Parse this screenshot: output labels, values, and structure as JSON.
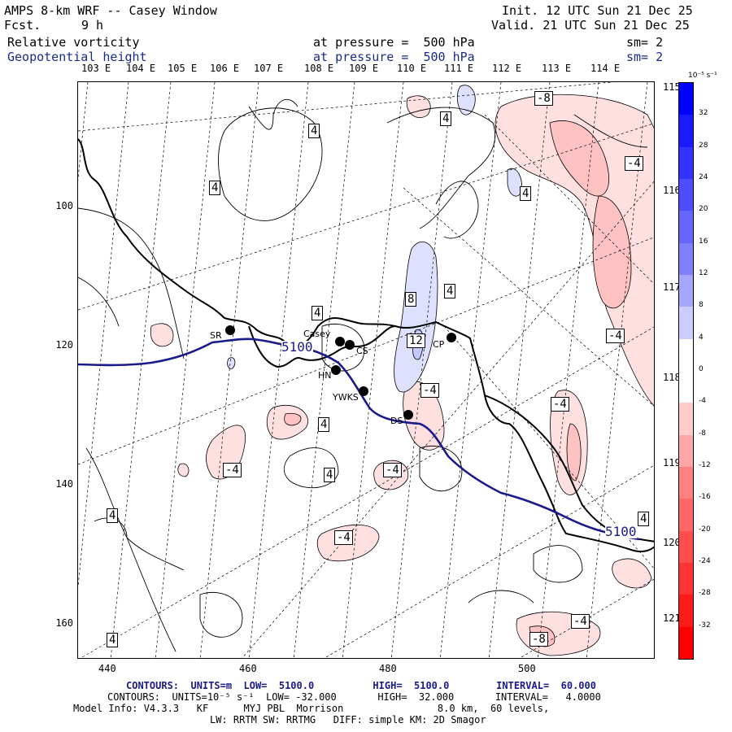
{
  "header": {
    "title": "AMPS 8-km WRF -- Casey Window",
    "fcst_label": "Fcst.",
    "fcst_value": "9 h",
    "init": "Init. 12 UTC Sun 21 Dec 25",
    "valid": "Valid. 21 UTC Sun 21 Dec 25",
    "field1": "Relative vorticity",
    "field1_pressure": "at pressure =  500 hPa",
    "field1_sm": "sm= 2",
    "field2": "Geopotential height",
    "field2_pressure": "at pressure =  500 hPa",
    "field2_sm": "sm= 2"
  },
  "longitudes": [
    "103 E",
    "104 E",
    "105 E",
    "106 E",
    "107 E",
    "108 E",
    "109 E",
    "110 E",
    "111 E",
    "112 E",
    "113 E",
    "114 E"
  ],
  "right_lon_labels": [
    "115 E",
    "116 E",
    "117 E",
    "118 E",
    "119 E",
    "120 E",
    "121 E"
  ],
  "y_ticks": [
    "100",
    "120",
    "140",
    "160"
  ],
  "x_ticks": [
    "440",
    "460",
    "480",
    "500"
  ],
  "colorbar": {
    "unit": "10⁻⁵ s⁻¹",
    "labels": [
      "32",
      "28",
      "24",
      "20",
      "16",
      "12",
      "8",
      "4",
      "0",
      "-4",
      "-8",
      "-12",
      "-16",
      "-20",
      "-24",
      "-28",
      "-32"
    ],
    "colors": [
      "#0000ff",
      "#1a1aff",
      "#3333ff",
      "#4d4dff",
      "#6666ff",
      "#8080ff",
      "#a6a6ff",
      "#ccccff",
      "#ffffff",
      "#ffffff",
      "#ffcccc",
      "#ffa6a6",
      "#ff8080",
      "#ff6666",
      "#ff4d4d",
      "#ff3333",
      "#ff1a1a",
      "#ff0000"
    ]
  },
  "stations": [
    {
      "name": "SR"
    },
    {
      "name": "Casey"
    },
    {
      "name": "CS"
    },
    {
      "name": "HN"
    },
    {
      "name": "YWKS"
    },
    {
      "name": "DS"
    },
    {
      "name": "CP"
    }
  ],
  "contour_labels": [
    "-8",
    "4",
    "4",
    "-4",
    "4",
    "4",
    "4",
    "8",
    "4",
    "12",
    "-4",
    "-4",
    "-4",
    "4",
    "-4",
    "4",
    "-4",
    "4",
    "-4",
    "-4",
    "4",
    "-8",
    "-4",
    "4",
    "4",
    "4"
  ],
  "height_labels": [
    "5100",
    "5100"
  ],
  "footer": {
    "line1": "CONTOURS:  UNITS=m  LOW=  5100.0          HIGH=  5100.0        INTERVAL=  60.000",
    "line2": "CONTOURS:  UNITS=10⁻⁵ s⁻¹  LOW= -32.000       HIGH=  32.000       INTERVAL=   4.0000",
    "line3": "Model Info: V4.3.3   KF      MYJ PBL  Morrison                8.0 km,  60 levels,",
    "line4": "LW: RRTM SW: RRTMG   DIFF: simple KM: 2D Smagor"
  }
}
